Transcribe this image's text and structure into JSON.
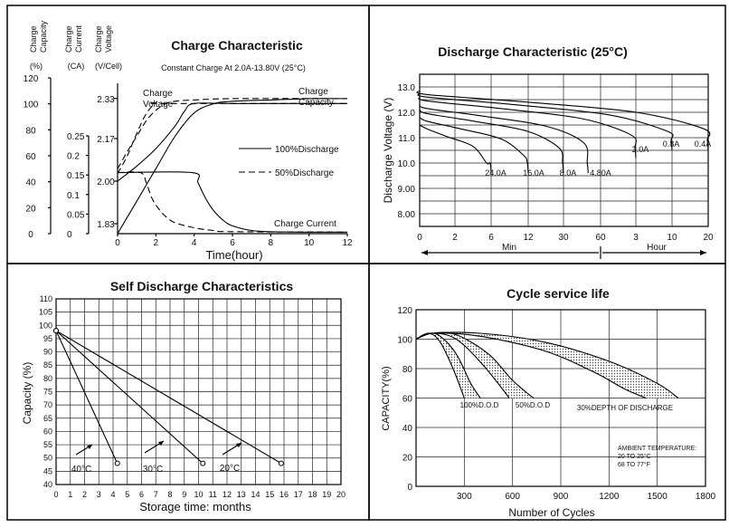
{
  "chart_data": [
    {
      "type": "line",
      "title": "Charge Characteristic",
      "subtitle": "Constant Charge At 2.0A-13.80V  (25°C)",
      "xlabel": "Time(hour)",
      "axis_headers": [
        {
          "label": "Charge\nCapacity",
          "unit": "(%)",
          "ticks": [
            0,
            20,
            40,
            60,
            80,
            100,
            120
          ]
        },
        {
          "label": "Charge\nCurrent",
          "unit": "(CA)",
          "ticks": [
            0,
            0.05,
            0.1,
            0.15,
            0.2,
            0.25
          ]
        },
        {
          "label": "Charge\nVoltage",
          "unit": "(V/Cell)",
          "ticks": [
            1.83,
            2.0,
            2.17,
            2.33
          ]
        }
      ],
      "x_ticks": [
        0,
        2,
        4,
        6,
        8,
        10,
        12
      ],
      "xlim": [
        0,
        12
      ],
      "ylim": [
        0,
        120
      ],
      "legend": [
        {
          "style": "solid",
          "label": "100%Discharge"
        },
        {
          "style": "dashed",
          "label": "50%Discharge"
        }
      ],
      "annotations": [
        "Charge\nVoltage",
        "Charge\nCapacity",
        "Charge Current"
      ],
      "series": [
        {
          "style": "solid",
          "curve": "charge voltage (V/Cell)",
          "x": [
            0,
            1,
            2,
            3,
            3.5,
            4,
            6,
            12
          ],
          "y": [
            2.0,
            2.06,
            2.13,
            2.22,
            2.28,
            2.31,
            2.31,
            2.31
          ]
        },
        {
          "style": "dashed",
          "curve": "charge voltage (V/Cell)",
          "x": [
            0,
            0.5,
            1,
            1.5,
            2,
            2.5,
            12
          ],
          "y": [
            2.03,
            2.1,
            2.19,
            2.27,
            2.31,
            2.31,
            2.31
          ]
        },
        {
          "style": "solid",
          "curve": "charge capacity (%)",
          "x": [
            0,
            1,
            2,
            3,
            4,
            5,
            6,
            8,
            10,
            12
          ],
          "y": [
            0,
            25,
            50,
            75,
            93,
            100,
            102,
            103,
            104,
            104
          ]
        },
        {
          "style": "dashed",
          "curve": "charge capacity (%)",
          "x": [
            0,
            0.5,
            1,
            1.5,
            2,
            2.5,
            3,
            4,
            6,
            12
          ],
          "y": [
            50,
            63,
            75,
            87,
            95,
            100,
            102,
            103,
            104,
            104
          ]
        },
        {
          "style": "solid",
          "curve": "charge current (CA)",
          "x": [
            0,
            3.9,
            4.2,
            4.6,
            5,
            5.5,
            6,
            7,
            8,
            10,
            12
          ],
          "y": [
            0.156,
            0.156,
            0.13,
            0.09,
            0.06,
            0.035,
            0.02,
            0.008,
            0.005,
            0.004,
            0.004
          ]
        },
        {
          "style": "dashed",
          "curve": "charge current (CA)",
          "x": [
            0,
            1.2,
            1.5,
            1.8,
            2.2,
            2.6,
            3,
            4,
            5,
            6,
            12
          ],
          "y": [
            0.156,
            0.156,
            0.13,
            0.09,
            0.06,
            0.04,
            0.028,
            0.015,
            0.008,
            0.005,
            0.004
          ]
        }
      ]
    },
    {
      "type": "line",
      "title": "Discharge Characteristic  (25°C)",
      "ylabel": "Discharge Voltage (V)",
      "y_ticks": [
        "8.00",
        "9.00",
        "10.0",
        "11.0",
        "12.0",
        "13.0"
      ],
      "ylim": [
        7.5,
        13.5
      ],
      "x_ticks": [
        "0",
        "2",
        "6",
        "12",
        "30",
        "60",
        "3",
        "10",
        "20"
      ],
      "x_groups": [
        "Min",
        "Hour"
      ],
      "series": [
        {
          "name": "24.0A",
          "v0": 11.5,
          "end_x": 6,
          "end_v": 9.6
        },
        {
          "name": "16.0A",
          "v0": 11.8,
          "end_x": 12,
          "end_v": 9.6
        },
        {
          "name": "8.0A",
          "v0": 12.1,
          "end_x": 30,
          "end_v": 9.6
        },
        {
          "name": "4.80A",
          "v0": 12.3,
          "end_x": 50,
          "end_v": 9.6
        },
        {
          "name": "2.0A",
          "v0": 12.6,
          "end_x": "3h",
          "end_v": 10.2
        },
        {
          "name": "0.8A",
          "v0": 12.75,
          "end_x": "10h",
          "end_v": 10.5
        },
        {
          "name": "0.4A",
          "v0": 12.85,
          "end_x": "20h",
          "end_v": 10.5
        }
      ]
    },
    {
      "type": "line",
      "title": "Self Discharge Characteristics",
      "xlabel": "Storage time: months",
      "ylabel": "Capacity (%)",
      "xlim": [
        0,
        20
      ],
      "ylim": [
        40,
        110
      ],
      "x_ticks": [
        0,
        1,
        2,
        3,
        4,
        5,
        6,
        7,
        8,
        9,
        10,
        11,
        12,
        13,
        14,
        15,
        16,
        17,
        18,
        19,
        20
      ],
      "y_ticks": [
        40,
        45,
        50,
        55,
        60,
        65,
        70,
        75,
        80,
        85,
        90,
        95,
        100,
        105,
        110
      ],
      "series": [
        {
          "name": "40°C",
          "x": [
            0,
            4.3
          ],
          "y": [
            98,
            48
          ]
        },
        {
          "name": "30°C",
          "x": [
            0,
            10.3
          ],
          "y": [
            98,
            48
          ]
        },
        {
          "name": "20°C",
          "x": [
            0,
            15.8
          ],
          "y": [
            98,
            48
          ]
        }
      ]
    },
    {
      "type": "area",
      "title": "Cycle service life",
      "xlabel": "Number of Cycles",
      "ylabel": "CAPACITY(%)",
      "xlim": [
        0,
        1800
      ],
      "ylim": [
        0,
        120
      ],
      "x_ticks": [
        300,
        600,
        900,
        1200,
        1500,
        1800
      ],
      "y_ticks": [
        0,
        20,
        40,
        60,
        80,
        100,
        120
      ],
      "annotation": "AMBIENT TEMPERATURE:\n20  TO  25°C\n68  TO  77°F",
      "series": [
        {
          "name": "100%D.O.D",
          "upper": {
            "x": [
              0,
              80,
              150,
              250,
              340,
              400
            ],
            "y": [
              100,
              104,
              102,
              90,
              70,
              60
            ]
          },
          "lower": {
            "x": [
              0,
              80,
              150,
              230,
              300
            ],
            "y": [
              100,
              104,
              98,
              80,
              60
            ]
          }
        },
        {
          "name": "50%D.O.D",
          "upper": {
            "x": [
              0,
              100,
              250,
              450,
              600,
              730
            ],
            "y": [
              100,
              104,
              103,
              90,
              72,
              60
            ]
          },
          "lower": {
            "x": [
              0,
              100,
              250,
              420,
              580
            ],
            "y": [
              100,
              104,
              100,
              82,
              60
            ]
          }
        },
        {
          "name": "30%DEPTH OF DISCHARGE",
          "upper": {
            "x": [
              0,
              100,
              400,
              800,
              1200,
              1500,
              1630
            ],
            "y": [
              100,
              104,
              104,
              98,
              85,
              70,
              60
            ]
          },
          "lower": {
            "x": [
              0,
              100,
              400,
              800,
              1100,
              1300,
              1430
            ],
            "y": [
              100,
              104,
              102,
              92,
              78,
              66,
              60
            ]
          }
        }
      ]
    }
  ]
}
